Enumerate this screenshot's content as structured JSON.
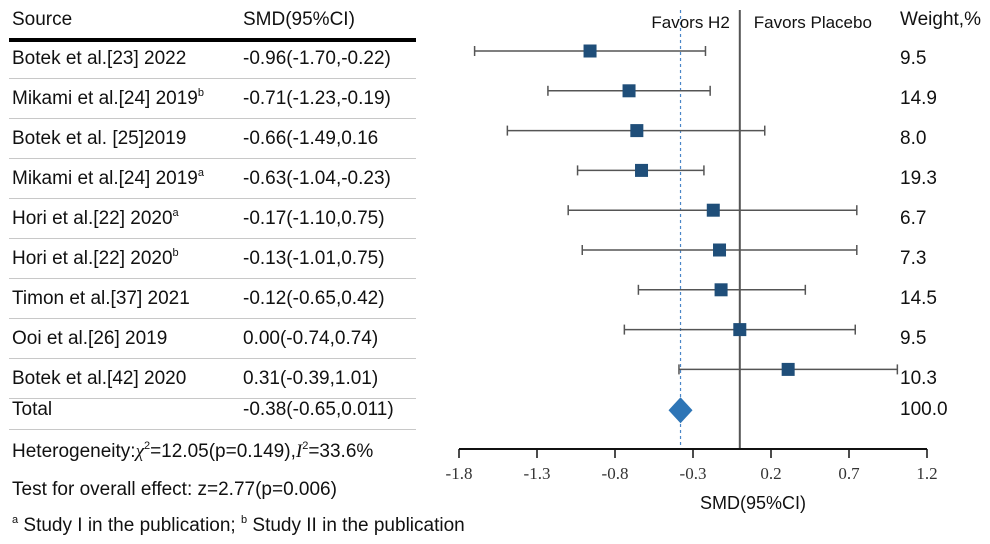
{
  "table": {
    "headers": {
      "source": "Source",
      "smd": "SMD(95%CI)",
      "weight": "Weight,%"
    },
    "rows": [
      {
        "author": "Botek et al.[23] 2022",
        "sup": "",
        "smd": "-0.96(-1.70,-0.22)",
        "weight": "9.5"
      },
      {
        "author": "Mikami et al.[24] 2019",
        "sup": "b",
        "smd": "-0.71(-1.23,-0.19)",
        "weight": "14.9"
      },
      {
        "author": "Botek et al. [25]2019",
        "sup": "",
        "smd": "-0.66(-1.49,0.16",
        "weight": "8.0"
      },
      {
        "author": "Mikami et al.[24] 2019",
        "sup": "a",
        "smd": "-0.63(-1.04,-0.23)",
        "weight": "19.3"
      },
      {
        "author": "Hori et al.[22] 2020",
        "sup": "a",
        "smd": "-0.17(-1.10,0.75)",
        "weight": "6.7"
      },
      {
        "author": "Hori et al.[22] 2020",
        "sup": "b",
        "smd": "-0.13(-1.01,0.75)",
        "weight": "7.3"
      },
      {
        "author": "Timon et al.[37] 2021",
        "sup": "",
        "smd": "-0.12(-0.65,0.42)",
        "weight": "14.5"
      },
      {
        "author": "Ooi et al.[26] 2019",
        "sup": "",
        "smd": "0.00(-0.74,0.74)",
        "weight": "9.5"
      },
      {
        "author": "Botek et al.[42] 2020",
        "sup": "",
        "smd": "0.31(-0.39,1.01)",
        "weight": "10.3"
      }
    ],
    "total": {
      "label": "Total",
      "smd": "-0.38(-0.65,0.011)",
      "weight": "100.0"
    },
    "heterogeneity": {
      "prefix": "Heterogeneity:",
      "chi": "χ",
      "chi_sup": "2",
      "chi_rest": "=12.05(p=0.149),",
      "i": "I",
      "i_sup": "2",
      "i_rest": "=33.6%"
    },
    "overall_effect": "Test for overall effect: z=2.77(p=0.006)",
    "footnote": {
      "a_mark": "a",
      "a_text": " Study I in the publication; ",
      "b_mark": "b",
      "b_text": " Study II in the publication"
    }
  },
  "chart_data": {
    "type": "forest",
    "favors_left": "Favors H2",
    "favors_right": "Favors Placebo",
    "xlabel": "SMD(95%CI)",
    "xlim": [
      -1.8,
      1.2
    ],
    "xticks": [
      "-1.8",
      "-1.3",
      "-0.8",
      "-0.3",
      "0.2",
      "0.7",
      "1.2"
    ],
    "null_line": 0,
    "studies": [
      {
        "est": -0.96,
        "lo": -1.7,
        "hi": -0.22
      },
      {
        "est": -0.71,
        "lo": -1.23,
        "hi": -0.19
      },
      {
        "est": -0.66,
        "lo": -1.49,
        "hi": 0.16
      },
      {
        "est": -0.63,
        "lo": -1.04,
        "hi": -0.23
      },
      {
        "est": -0.17,
        "lo": -1.1,
        "hi": 0.75
      },
      {
        "est": -0.13,
        "lo": -1.01,
        "hi": 0.75
      },
      {
        "est": -0.12,
        "lo": -0.65,
        "hi": 0.42
      },
      {
        "est": 0.0,
        "lo": -0.74,
        "hi": 0.74
      },
      {
        "est": 0.31,
        "lo": -0.39,
        "hi": 1.01
      }
    ],
    "pooled": {
      "est": -0.38,
      "lo": -0.65,
      "hi": 0.011
    },
    "colors": {
      "marker": "#1f4e79",
      "diamond": "#2e75b6",
      "ci": "#555555",
      "dashed": "#4a86c8"
    }
  }
}
